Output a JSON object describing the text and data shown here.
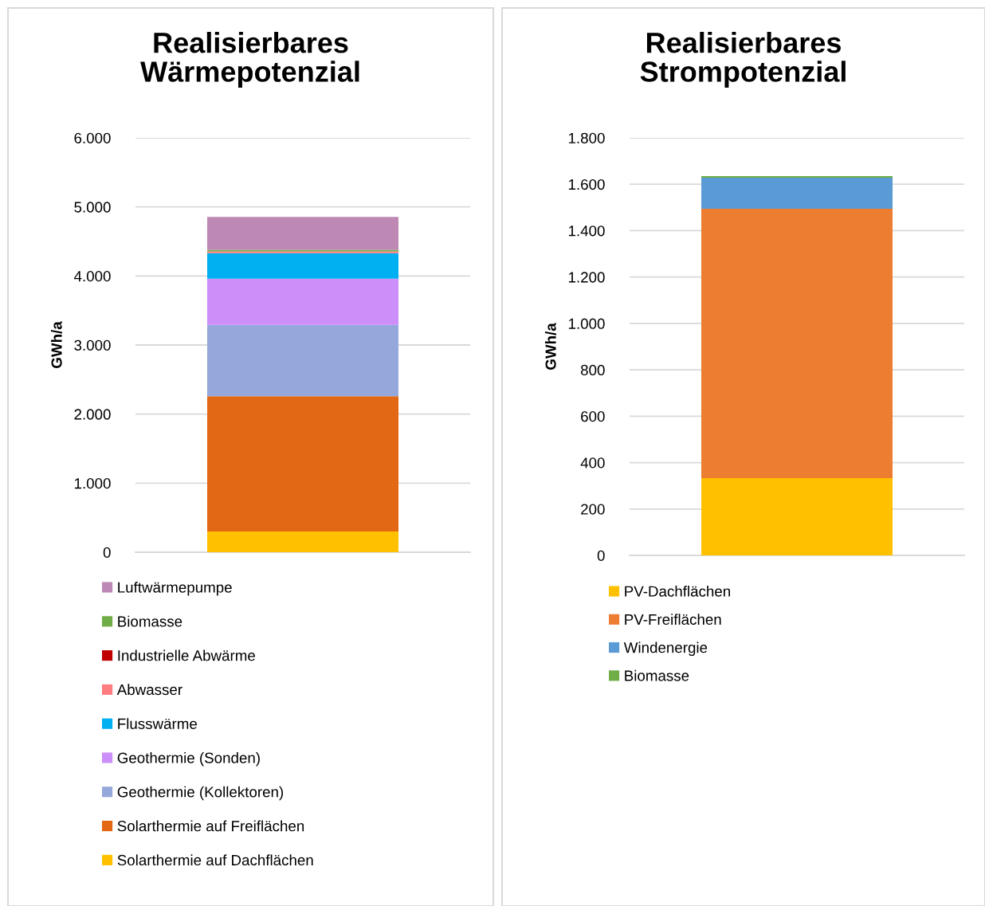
{
  "chart_data": [
    {
      "type": "bar",
      "title": "Realisierbares\nWärmepotenzial",
      "ylabel": "GWh/a",
      "categories": [
        null
      ],
      "stacked": true,
      "series": [
        {
          "name": "Solarthermie auf Dachflächen",
          "color": "#ffc000",
          "values": [
            300
          ]
        },
        {
          "name": "Solarthermie auf Freiflächen",
          "color": "#e26815",
          "values": [
            1960
          ]
        },
        {
          "name": "Geothermie (Kollektoren)",
          "color": "#95a8dc",
          "values": [
            1030
          ]
        },
        {
          "name": "Geothermie (Sonden)",
          "color": "#cc8ffa",
          "values": [
            670
          ]
        },
        {
          "name": "Flusswärme",
          "color": "#00b0f0",
          "values": [
            370
          ]
        },
        {
          "name": "Abwasser",
          "color": "#ff7c80",
          "values": [
            25
          ]
        },
        {
          "name": "Industrielle Abwärme",
          "color": "#c00000",
          "values": [
            null
          ]
        },
        {
          "name": "Biomasse",
          "color": "#70ad47",
          "values": [
            25
          ]
        },
        {
          "name": "Luftwärmepumpe",
          "color": "#bd88b4",
          "values": [
            475
          ]
        }
      ],
      "ylim": [
        0,
        6000
      ],
      "yticks": [
        0,
        {
          "value": 1000,
          "label": "1.000"
        },
        {
          "value": 2000,
          "label": "2.000"
        },
        {
          "value": 3000,
          "label": "3.000"
        },
        {
          "value": 4000,
          "label": "4.000"
        },
        {
          "value": 5000,
          "label": "5.000"
        },
        {
          "value": 6000,
          "label": "6.000"
        }
      ],
      "grid": "y",
      "legend": "bottom"
    },
    {
      "type": "bar",
      "title": "Realisierbares\nStrompotenzial",
      "ylabel": "GWh/a",
      "categories": [
        null
      ],
      "stacked": true,
      "series": [
        {
          "name": "PV-Dachflächen",
          "color": "#ffc000",
          "values": [
            333
          ]
        },
        {
          "name": "PV-Freiflächen",
          "color": "#ed7d31",
          "values": [
            1161
          ]
        },
        {
          "name": "Windenergie",
          "color": "#5b9bd5",
          "values": [
            134
          ]
        },
        {
          "name": "Biomasse",
          "color": "#70ad47",
          "values": [
            7
          ]
        }
      ],
      "ylim": [
        0,
        1800
      ],
      "yticks": [
        0,
        200,
        400,
        600,
        800,
        {
          "value": 1000,
          "label": "1.000"
        },
        {
          "value": 1200,
          "label": "1.200"
        },
        {
          "value": 1400,
          "label": "1.400"
        },
        {
          "value": 1600,
          "label": "1.600"
        },
        {
          "value": 1800,
          "label": "1.800"
        }
      ],
      "grid": "y",
      "legend": "bottom"
    }
  ]
}
